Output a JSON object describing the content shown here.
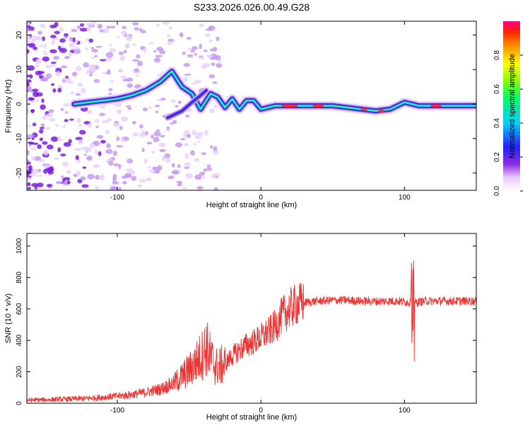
{
  "page": {
    "title": "S233.2026.026.00.49.G28"
  },
  "chart_data": [
    {
      "type": "heatmap",
      "title": "S233.2026.026.00.49.G28",
      "xlabel": "Height of straight line (km)",
      "ylabel": "Frequency (Hz)",
      "xlim": [
        -163,
        150
      ],
      "ylim": [
        -25,
        24
      ],
      "xticks": [
        -100,
        0,
        100
      ],
      "xtick_labels": [
        "-100",
        "0",
        "100"
      ],
      "yticks": [
        -20,
        -10,
        0,
        10,
        20
      ],
      "ytick_labels": [
        "-20",
        "-10",
        "0",
        "10",
        "20"
      ],
      "ridge": {
        "x": [
          -130,
          -120,
          -110,
          -100,
          -90,
          -80,
          -70,
          -62,
          -55,
          -48,
          -42,
          -35,
          -30,
          -25,
          -20,
          -15,
          -10,
          -5,
          0,
          10,
          30,
          50,
          70,
          80,
          90,
          100,
          110,
          130,
          150
        ],
        "y": [
          0,
          0.5,
          1,
          1.5,
          2.5,
          4,
          6.5,
          9.5,
          5,
          3,
          -1.5,
          3,
          2,
          -1,
          1.5,
          -1.5,
          1,
          1,
          -1.5,
          -0.5,
          -0.5,
          -0.5,
          -1.5,
          -2,
          -1.5,
          0.5,
          -0.5,
          -0.5,
          -0.5
        ]
      },
      "colorbar": {
        "label": "Normalized spectral amplitude",
        "range": [
          0,
          1
        ],
        "ticks": [
          0.0,
          0.2,
          0.4,
          0.6,
          0.8
        ],
        "tick_labels": [
          "0.0",
          "0.2",
          "0.4",
          "0.6",
          "0.8"
        ]
      }
    },
    {
      "type": "line",
      "xlabel": "Height of straight line (km)",
      "ylabel": "SNR (10 * v/v)",
      "xlim": [
        -163,
        150
      ],
      "ylim": [
        0,
        1080
      ],
      "xticks": [
        -100,
        0,
        100
      ],
      "xtick_labels": [
        "-100",
        "0",
        "100"
      ],
      "yticks": [
        0,
        200,
        400,
        600,
        800,
        1000
      ],
      "ytick_labels": [
        "0",
        "200",
        "400",
        "600",
        "800",
        "1000"
      ],
      "color": "#ee3333",
      "series": [
        {
          "x": [
            -163,
            -150,
            -140,
            -130,
            -120,
            -110,
            -100,
            -90,
            -80,
            -70,
            -60,
            -55,
            -50,
            -45,
            -40,
            -38,
            -35,
            -32,
            -30,
            -25,
            -20,
            -15,
            -10,
            -5,
            0,
            5,
            10,
            15,
            20,
            25,
            30,
            35,
            40,
            50,
            60,
            70,
            80,
            90,
            95,
            100,
            104,
            105,
            106,
            107,
            108,
            110,
            115,
            120,
            130,
            140,
            150
          ],
          "y": [
            20,
            22,
            25,
            28,
            32,
            38,
            45,
            55,
            70,
            90,
            130,
            170,
            210,
            260,
            320,
            360,
            290,
            240,
            230,
            250,
            300,
            340,
            370,
            390,
            420,
            450,
            490,
            560,
            600,
            630,
            640,
            645,
            650,
            655,
            655,
            650,
            648,
            650,
            650,
            645,
            640,
            900,
            350,
            645,
            640,
            645,
            650,
            650,
            650,
            650,
            650
          ]
        }
      ]
    }
  ]
}
